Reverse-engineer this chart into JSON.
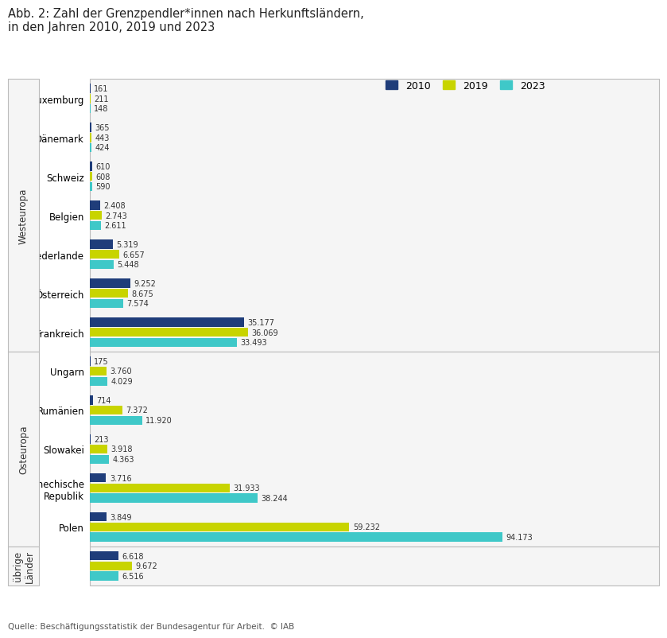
{
  "title": "Abb. 2: Zahl der Grenzpendler*innen nach Herkunftsländern,\nin den Jahren 2010, 2019 und 2023",
  "source": "Quelle: Beschäftigungsstatistik der Bundesagentur für Arbeit.  © IAB",
  "legend_labels": [
    "2010",
    "2019",
    "2023"
  ],
  "colors": [
    "#1f3d7a",
    "#c8d400",
    "#3fc8c8"
  ],
  "groups": [
    {
      "label": "Westeuropa",
      "countries": [
        "Luxemburg",
        "Dänemark",
        "Schweiz",
        "Belgien",
        "Niederlande",
        "Österreich",
        "Frankreich"
      ],
      "values_2010": [
        161,
        365,
        610,
        2408,
        5319,
        9252,
        35177
      ],
      "values_2019": [
        211,
        443,
        608,
        2743,
        6657,
        8675,
        36069
      ],
      "values_2023": [
        148,
        424,
        590,
        2611,
        5448,
        7574,
        33493
      ]
    },
    {
      "label": "Osteuropa",
      "countries": [
        "Ungarn",
        "Rumänien",
        "Slowakei",
        "Tschechische\nRepublik",
        "Polen"
      ],
      "values_2010": [
        175,
        714,
        213,
        3716,
        3849
      ],
      "values_2019": [
        3760,
        7372,
        3918,
        31933,
        59232
      ],
      "values_2023": [
        4029,
        11920,
        4363,
        38244,
        94173
      ]
    },
    {
      "label": "übrige\nLänder",
      "countries": [
        ""
      ],
      "values_2010": [
        6618
      ],
      "values_2019": [
        9672
      ],
      "values_2023": [
        6516
      ]
    }
  ],
  "value_labels": {
    "Luxemburg": [
      "161",
      "211",
      "148"
    ],
    "Dänemark": [
      "365",
      "443",
      "424"
    ],
    "Schweiz": [
      "610",
      "608",
      "590"
    ],
    "Belgien": [
      "2.408",
      "2.743",
      "2.611"
    ],
    "Niederlande": [
      "5.319",
      "6.657",
      "5.448"
    ],
    "Österreich": [
      "9.252",
      "8.675",
      "7.574"
    ],
    "Frankreich": [
      "35.177",
      "36.069",
      "33.493"
    ],
    "Ungarn": [
      "175",
      "3.760",
      "4.029"
    ],
    "Rumänien": [
      "714",
      "7.372",
      "11.920"
    ],
    "Slowakei": [
      "213",
      "3.918",
      "4.363"
    ],
    "Tschechische\nRepublik": [
      "3.716",
      "31.933",
      "38.244"
    ],
    "Polen": [
      "3.849",
      "59.232",
      "94.173"
    ],
    "": [
      "6.618",
      "9.672",
      "6.516"
    ]
  },
  "bar_height": 0.26,
  "xlim_max": 100000,
  "background_color": "#ffffff",
  "box_facecolor": "#f5f5f5",
  "box_edgecolor": "#bbbbbb"
}
